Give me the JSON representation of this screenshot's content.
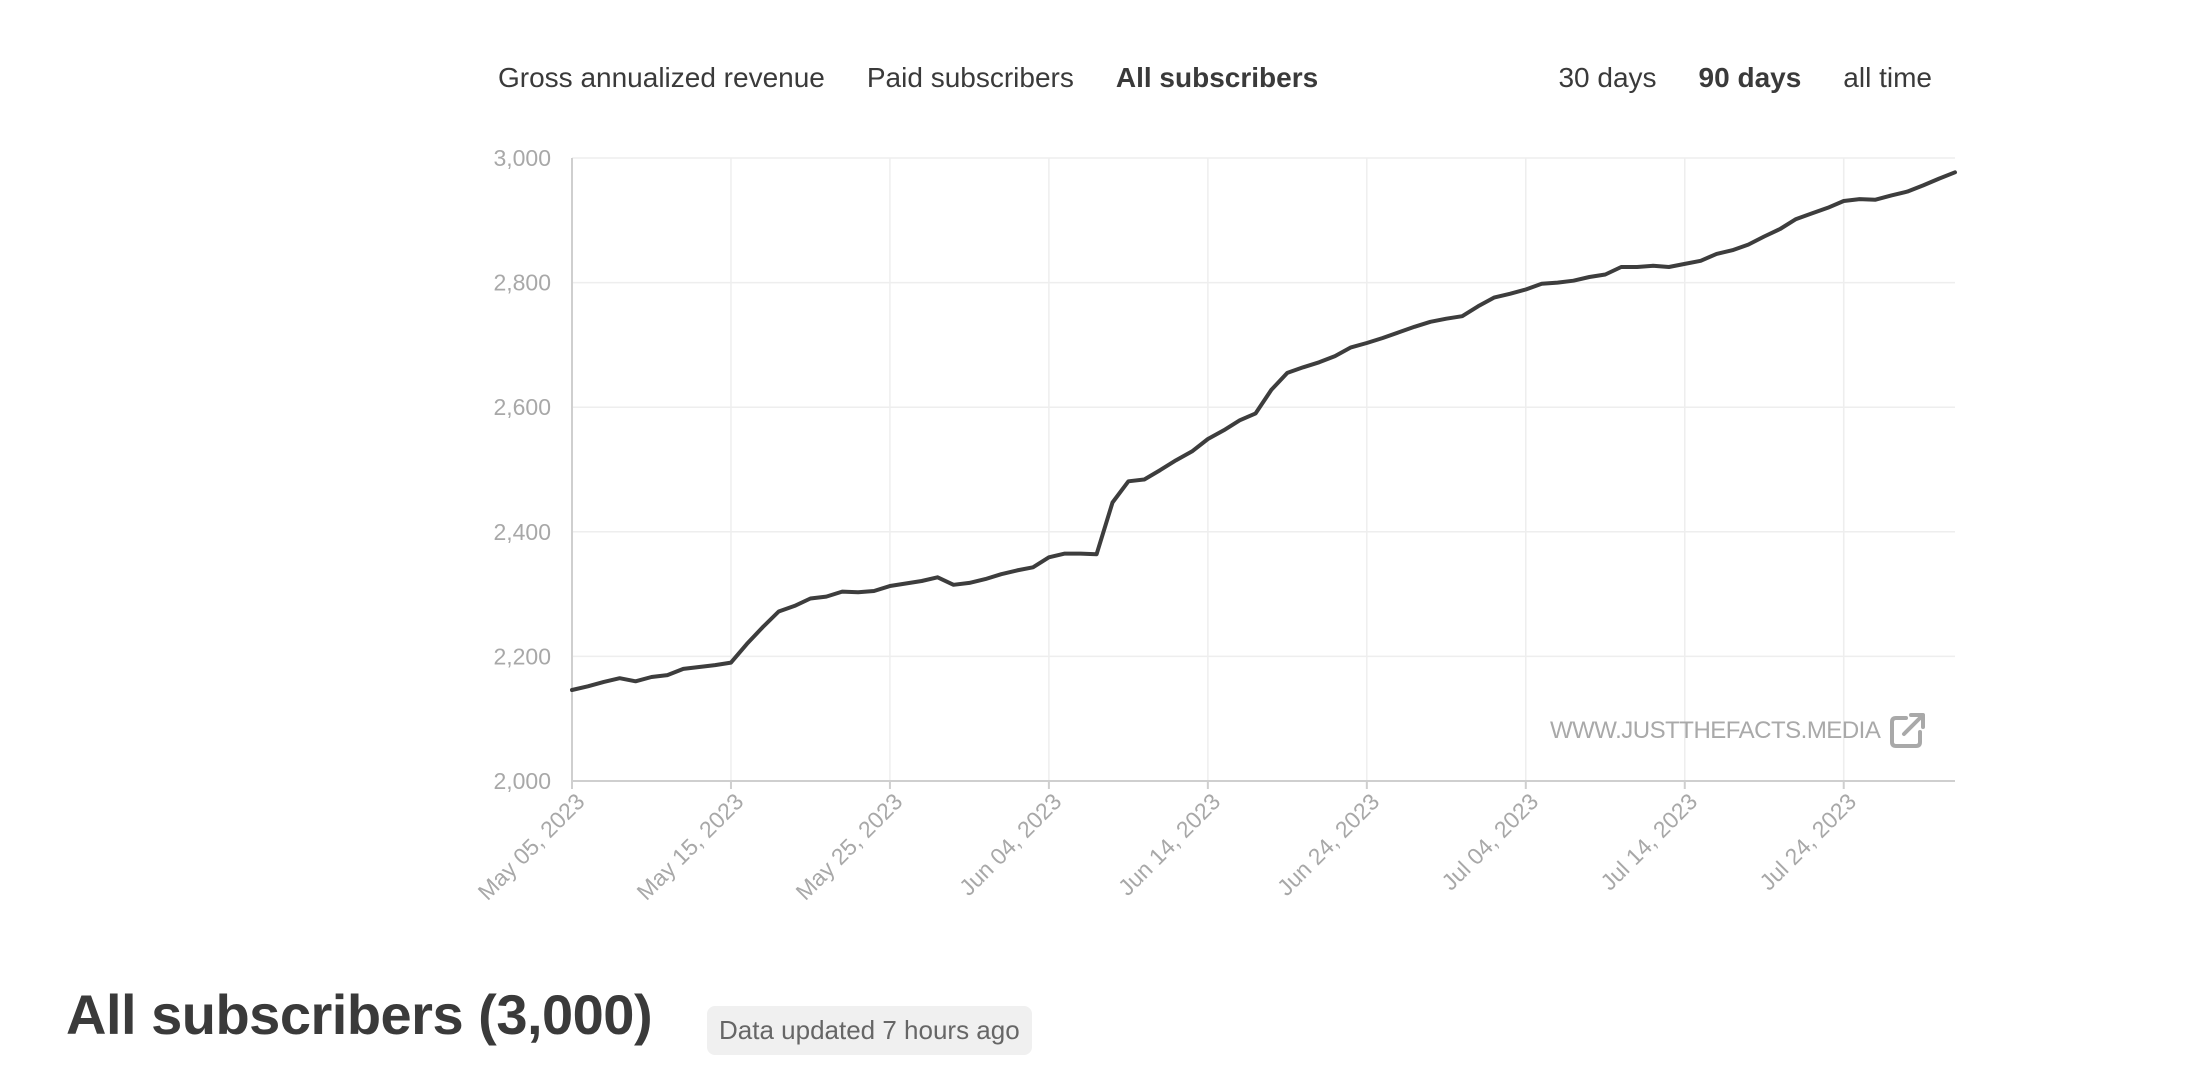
{
  "metric_tabs": [
    {
      "label": "Gross annualized revenue",
      "active": false
    },
    {
      "label": "Paid subscribers",
      "active": false
    },
    {
      "label": "All subscribers",
      "active": true
    }
  ],
  "range_tabs": [
    {
      "label": "30 days",
      "active": false
    },
    {
      "label": "90 days",
      "active": true
    },
    {
      "label": "all time",
      "active": false
    }
  ],
  "watermark": {
    "text": "WWW.JUSTTHEFACTS.MEDIA",
    "icon": "external-link-icon"
  },
  "footer": {
    "title": "All subscribers (3,000)",
    "badge": "Data updated 7 hours ago"
  },
  "colors": {
    "line": "#3d3d3d",
    "grid": "#eeeeee",
    "axis": "#cfcfcf",
    "tick_text": "#a8a8a8"
  },
  "chart_data": {
    "type": "line",
    "title": "",
    "xlabel": "",
    "ylabel": "",
    "ylim": [
      2000,
      3000
    ],
    "xlim": [
      "2023-05-05",
      "2023-07-31"
    ],
    "yticks": [
      2000,
      2200,
      2400,
      2600,
      2800,
      3000
    ],
    "ytick_labels": [
      "2,000",
      "2,200",
      "2,400",
      "2,600",
      "2,800",
      "3,000"
    ],
    "xticks": [
      "2023-05-05",
      "2023-05-15",
      "2023-05-25",
      "2023-06-04",
      "2023-06-14",
      "2023-06-24",
      "2023-07-04",
      "2023-07-14",
      "2023-07-24"
    ],
    "xtick_labels": [
      "May 05, 2023",
      "May 15, 2023",
      "May 25, 2023",
      "Jun 04, 2023",
      "Jun 14, 2023",
      "Jun 24, 2023",
      "Jul 04, 2023",
      "Jul 14, 2023",
      "Jul 24, 2023"
    ],
    "grid": true,
    "legend": "none",
    "series": [
      {
        "x": [
          "2023-05-05",
          "2023-05-06",
          "2023-05-07",
          "2023-05-08",
          "2023-05-09",
          "2023-05-10",
          "2023-05-11",
          "2023-05-12",
          "2023-05-13",
          "2023-05-14",
          "2023-05-15",
          "2023-05-16",
          "2023-05-17",
          "2023-05-18",
          "2023-05-19",
          "2023-05-20",
          "2023-05-21",
          "2023-05-22",
          "2023-05-23",
          "2023-05-24",
          "2023-05-25",
          "2023-05-26",
          "2023-05-27",
          "2023-05-28",
          "2023-05-29",
          "2023-05-30",
          "2023-05-31",
          "2023-06-01",
          "2023-06-02",
          "2023-06-03",
          "2023-06-04",
          "2023-06-05",
          "2023-06-06",
          "2023-06-07",
          "2023-06-08",
          "2023-06-09",
          "2023-06-10",
          "2023-06-11",
          "2023-06-12",
          "2023-06-13",
          "2023-06-14",
          "2023-06-15",
          "2023-06-16",
          "2023-06-17",
          "2023-06-18",
          "2023-06-19",
          "2023-06-20",
          "2023-06-21",
          "2023-06-22",
          "2023-06-23",
          "2023-06-24",
          "2023-06-25",
          "2023-06-26",
          "2023-06-27",
          "2023-06-28",
          "2023-06-29",
          "2023-06-30",
          "2023-07-01",
          "2023-07-02",
          "2023-07-03",
          "2023-07-04",
          "2023-07-05",
          "2023-07-06",
          "2023-07-07",
          "2023-07-08",
          "2023-07-09",
          "2023-07-10",
          "2023-07-11",
          "2023-07-12",
          "2023-07-13",
          "2023-07-14",
          "2023-07-15",
          "2023-07-16",
          "2023-07-17",
          "2023-07-18",
          "2023-07-19",
          "2023-07-20",
          "2023-07-21",
          "2023-07-22",
          "2023-07-23",
          "2023-07-24",
          "2023-07-25",
          "2023-07-26",
          "2023-07-27",
          "2023-07-28",
          "2023-07-29",
          "2023-07-30",
          "2023-07-31"
        ],
        "y": [
          2146,
          2152,
          2159,
          2165,
          2160,
          2167,
          2170,
          2180,
          2183,
          2186,
          2190,
          2220,
          2247,
          2272,
          2281,
          2293,
          2296,
          2304,
          2303,
          2305,
          2313,
          2317,
          2321,
          2327,
          2315,
          2318,
          2324,
          2332,
          2338,
          2343,
          2359,
          2365,
          2365,
          2364,
          2447,
          2481,
          2484,
          2499,
          2515,
          2529,
          2549,
          2563,
          2579,
          2590,
          2628,
          2655,
          2664,
          2672,
          2682,
          2696,
          2703,
          2711,
          2720,
          2729,
          2737,
          2742,
          2746,
          2762,
          2776,
          2782,
          2789,
          2798,
          2800,
          2803,
          2809,
          2813,
          2825,
          2825,
          2827,
          2825,
          2830,
          2835,
          2846,
          2852,
          2861,
          2874,
          2886,
          2902,
          2911,
          2920,
          2931,
          2934,
          2933,
          2940,
          2946,
          2956,
          2967,
          2977
        ]
      }
    ]
  }
}
